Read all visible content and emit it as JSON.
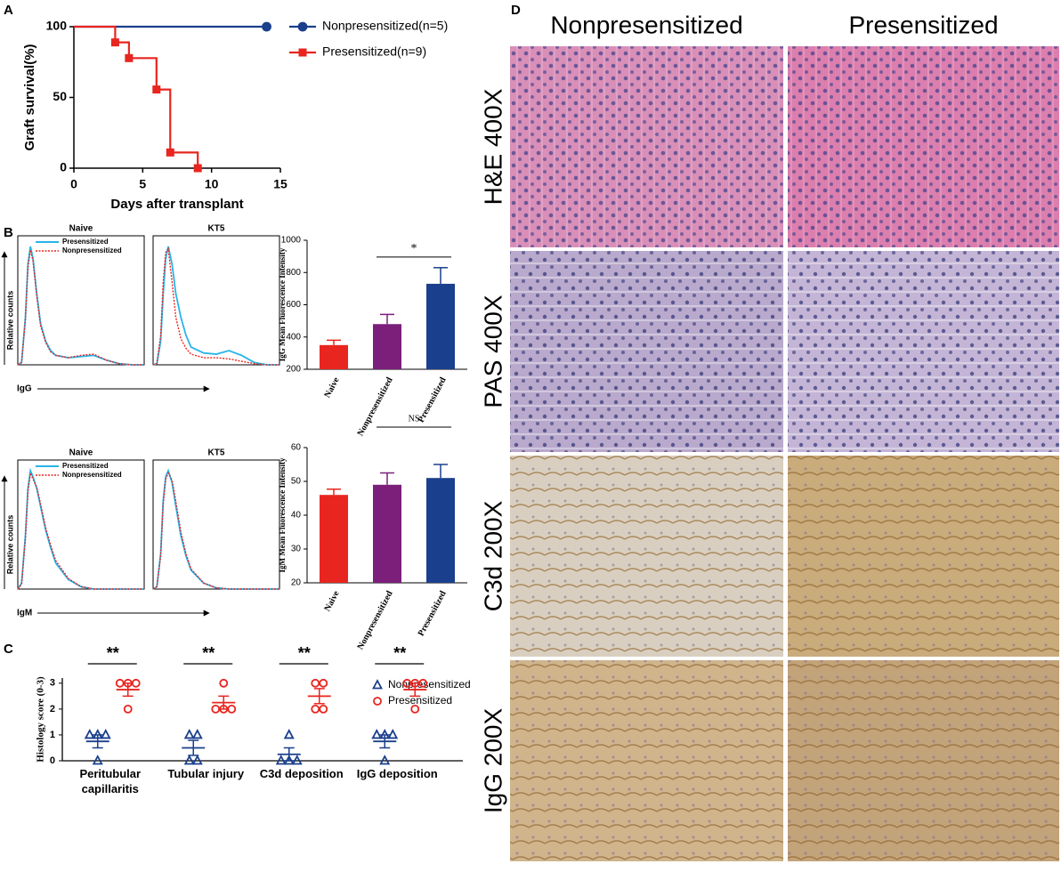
{
  "panel_labels": [
    "A",
    "B",
    "C",
    "D"
  ],
  "histology": {
    "columns": [
      "Nonpresensitized",
      "Presensitized"
    ],
    "rows": [
      "H&E 400X",
      "PAS 400X",
      "C3d 200X",
      "IgG 200X"
    ]
  },
  "chart_data": [
    {
      "type": "step",
      "xlabel": "Days after transplant",
      "ylabel": "Graft survival(%)",
      "xlim": [
        0,
        15
      ],
      "xticks": [
        0,
        5,
        10,
        15
      ],
      "ylim": [
        0,
        100
      ],
      "yticks": [
        0,
        50,
        100
      ],
      "series": [
        {
          "name": "Nonpresensitized(n=5)",
          "color": "#1a3f8c",
          "marker": "circle",
          "x": [
            0,
            14
          ],
          "values": [
            100,
            100
          ]
        },
        {
          "name": "Presensitized(n=9)",
          "color": "#e8251f",
          "marker": "square",
          "x": [
            0,
            3,
            4,
            6,
            7,
            9
          ],
          "values": [
            100,
            88.9,
            77.8,
            55.6,
            11.1,
            0
          ]
        }
      ]
    },
    {
      "type": "flow",
      "xlabel": "IgG",
      "ylabel": "Relative counts",
      "xlim": [
        0,
        100
      ],
      "ylim": [
        0,
        100
      ],
      "x": [
        0,
        3,
        6,
        8,
        10,
        12,
        15,
        18,
        22,
        26,
        30,
        40,
        50,
        60,
        70,
        80,
        90,
        100
      ],
      "panels": [
        {
          "title": "Naive",
          "series": [
            {
              "name": "Presensitized",
              "color": "#29b5e8",
              "values": [
                0,
                2,
                40,
                85,
                100,
                90,
                60,
                35,
                20,
                12,
                8,
                6,
                7,
                8,
                4,
                1,
                0,
                0
              ]
            },
            {
              "name": "Nonpresensitized",
              "color": "#e8251f",
              "values": [
                0,
                2,
                38,
                82,
                97,
                88,
                58,
                33,
                19,
                11,
                8,
                6,
                8,
                9,
                4,
                1,
                0,
                0
              ]
            }
          ]
        },
        {
          "title": "KT5",
          "series": [
            {
              "name": "Presensitized",
              "color": "#29b5e8",
              "values": [
                0,
                1,
                20,
                60,
                90,
                100,
                85,
                60,
                40,
                25,
                15,
                10,
                9,
                12,
                8,
                2,
                0,
                0
              ]
            },
            {
              "name": "Nonpresensitized",
              "color": "#e8251f",
              "values": [
                0,
                1,
                25,
                70,
                95,
                98,
                70,
                40,
                22,
                14,
                9,
                6,
                6,
                5,
                3,
                1,
                0,
                0
              ]
            }
          ]
        }
      ]
    },
    {
      "type": "flow",
      "xlabel": "IgM",
      "ylabel": "Relative counts",
      "xlim": [
        0,
        100
      ],
      "ylim": [
        0,
        100
      ],
      "x": [
        0,
        3,
        6,
        8,
        10,
        12,
        15,
        18,
        22,
        26,
        30,
        40,
        50,
        60,
        70,
        80,
        90,
        100
      ],
      "panels": [
        {
          "title": "Naive",
          "series": [
            {
              "name": "Presensitized",
              "color": "#29b5e8",
              "values": [
                0,
                5,
                45,
                85,
                100,
                95,
                85,
                70,
                50,
                35,
                22,
                8,
                2,
                0,
                0,
                0,
                0,
                0
              ]
            },
            {
              "name": "Nonpresensitized",
              "color": "#e8251f",
              "values": [
                0,
                4,
                42,
                82,
                98,
                93,
                86,
                72,
                52,
                37,
                24,
                9,
                2,
                0,
                0,
                0,
                0,
                0
              ]
            }
          ]
        },
        {
          "title": "KT5",
          "series": [
            {
              "name": "Presensitized",
              "color": "#29b5e8",
              "values": [
                0,
                2,
                30,
                75,
                95,
                100,
                90,
                70,
                45,
                28,
                16,
                5,
                1,
                0,
                0,
                0,
                0,
                0
              ]
            },
            {
              "name": "Nonpresensitized",
              "color": "#e8251f",
              "values": [
                0,
                2,
                28,
                72,
                93,
                98,
                92,
                74,
                48,
                30,
                17,
                5,
                1,
                0,
                0,
                0,
                0,
                0
              ]
            }
          ]
        }
      ]
    },
    {
      "type": "bar",
      "ylabel": "IgG Mean Fluorescence Intensity",
      "categories": [
        "Naive",
        "Nonpresensitized",
        "Presensitized"
      ],
      "values": [
        350,
        480,
        730
      ],
      "errors": [
        30,
        60,
        100
      ],
      "colors": [
        "#e8251f",
        "#7b1f7b",
        "#1a3f8c"
      ],
      "ylim": [
        200,
        1000
      ],
      "yticks": [
        200,
        400,
        600,
        800,
        1000
      ],
      "annotation": "*"
    },
    {
      "type": "bar",
      "ylabel": "IgM Mean Fluorescence Intensity",
      "categories": [
        "Naive",
        "Nonpresensitized",
        "Presensitized"
      ],
      "values": [
        46,
        49,
        51
      ],
      "errors": [
        1.7,
        3.5,
        4
      ],
      "colors": [
        "#e8251f",
        "#7b1f7b",
        "#1a3f8c"
      ],
      "ylim": [
        20,
        60
      ],
      "yticks": [
        20,
        30,
        40,
        50,
        60
      ],
      "annotation": "NS"
    },
    {
      "type": "dot",
      "ylabel": "Histology score (0-3)",
      "categories": [
        "Peritubular capillaritis",
        "Tubular injury",
        "C3d deposition",
        "IgG deposition"
      ],
      "ylim": [
        0,
        3.2
      ],
      "yticks": [
        0,
        1,
        2,
        3
      ],
      "annotations": [
        "**",
        "**",
        "**",
        "**"
      ],
      "series": [
        {
          "name": "Nonpresensitized",
          "color": "#1a3f8c",
          "marker": "triangle",
          "values": [
            [
              1,
              1,
              1,
              0
            ],
            [
              1,
              1,
              0,
              0
            ],
            [
              1,
              0,
              0,
              0
            ],
            [
              1,
              1,
              1,
              0
            ]
          ],
          "means": [
            0.75,
            0.5,
            0.25,
            0.75
          ],
          "errors": [
            0.25,
            0.29,
            0.25,
            0.25
          ]
        },
        {
          "name": "Presensitized",
          "color": "#e8251f",
          "marker": "circle",
          "values": [
            [
              3,
              3,
              3,
              2
            ],
            [
              3,
              2,
              2,
              2
            ],
            [
              3,
              3,
              2,
              2
            ],
            [
              3,
              3,
              3,
              2
            ]
          ],
          "means": [
            2.75,
            2.25,
            2.5,
            2.75
          ],
          "errors": [
            0.25,
            0.25,
            0.29,
            0.25
          ]
        }
      ]
    }
  ]
}
